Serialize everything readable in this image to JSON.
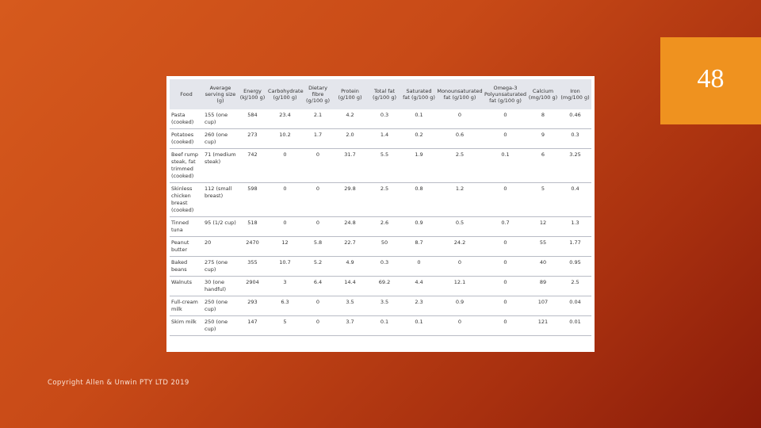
{
  "slide_number": "48",
  "copyright": "Copyright Allen & Unwin PTY LTD 2019",
  "table": {
    "header": [
      "Food",
      "Average serving size (g)",
      "Energy (kJ/100 g)",
      "Carbohydrate (g/100 g)",
      "Dietary fibre (g/100 g)",
      "Protein (g/100 g)",
      "Total fat (g/100 g)",
      "Saturated fat (g/100 g)",
      "Monounsaturated fat (g/100 g)",
      "Omega-3 Polyunsaturated fat (g/100 g)",
      "Calcium (mg/100 g)",
      "Iron (mg/100 g)"
    ],
    "rows": [
      [
        "Pasta (cooked)",
        "155 (one cup)",
        "584",
        "23.4",
        "2.1",
        "4.2",
        "0.3",
        "0.1",
        "0",
        "0",
        "8",
        "0.46"
      ],
      [
        "Potatoes (cooked)",
        "260 (one cup)",
        "273",
        "10.2",
        "1.7",
        "2.0",
        "1.4",
        "0.2",
        "0.6",
        "0",
        "9",
        "0.3"
      ],
      [
        "Beef rump steak, fat trimmed (cooked)",
        "71 (medium steak)",
        "742",
        "0",
        "0",
        "31.7",
        "5.5",
        "1.9",
        "2.5",
        "0.1",
        "6",
        "3.25"
      ],
      [
        "Skinless chicken breast (cooked)",
        "112 (small breast)",
        "598",
        "0",
        "0",
        "29.8",
        "2.5",
        "0.8",
        "1.2",
        "0",
        "5",
        "0.4"
      ],
      [
        "Tinned tuna",
        "95 (1/2 cup)",
        "518",
        "0",
        "0",
        "24.8",
        "2.6",
        "0.9",
        "0.5",
        "0.7",
        "12",
        "1.3"
      ],
      [
        "Peanut butter",
        "20",
        "2470",
        "12",
        "5.8",
        "22.7",
        "50",
        "8.7",
        "24.2",
        "0",
        "55",
        "1.77"
      ],
      [
        "Baked beans",
        "275 (one cup)",
        "355",
        "10.7",
        "5.2",
        "4.9",
        "0.3",
        "0",
        "0",
        "0",
        "40",
        "0.95"
      ],
      [
        "Walnuts",
        "30 (one handful)",
        "2904",
        "3",
        "6.4",
        "14.4",
        "69.2",
        "4.4",
        "12.1",
        "0",
        "89",
        "2.5"
      ],
      [
        "Full-cream milk",
        "250 (one cup)",
        "293",
        "6.3",
        "0",
        "3.5",
        "3.5",
        "2.3",
        "0.9",
        "0",
        "107",
        "0.04"
      ],
      [
        "Skim milk",
        "250 (one cup)",
        "147",
        "5",
        "0",
        "3.7",
        "0.1",
        "0.1",
        "0",
        "0",
        "121",
        "0.01"
      ]
    ]
  }
}
